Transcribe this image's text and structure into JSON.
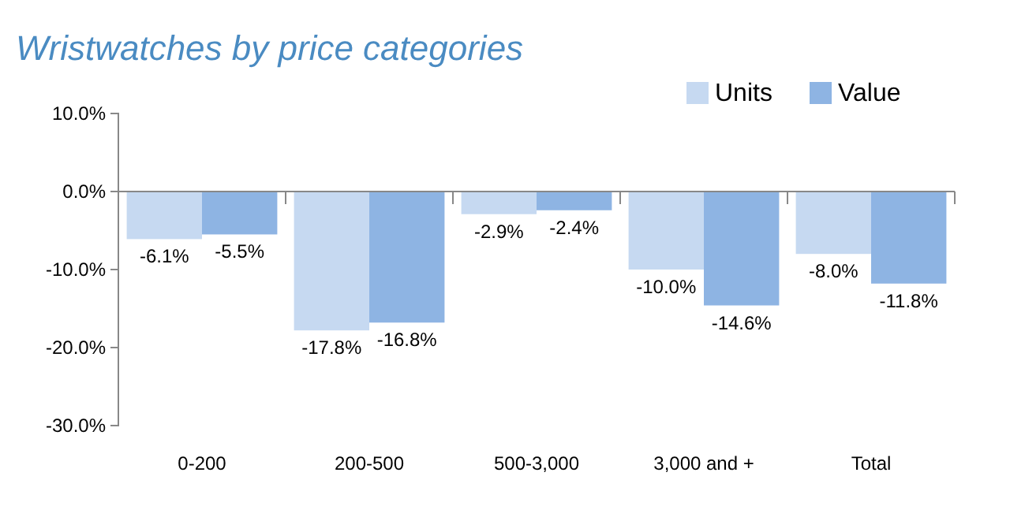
{
  "chart_data": {
    "type": "bar",
    "title": "Wristwatches by price categories",
    "categories": [
      "0-200",
      "200-500",
      "500-3,000",
      "3,000 and +",
      "Total"
    ],
    "series": [
      {
        "name": "Units",
        "color": "#c6d9f1",
        "values": [
          -6.1,
          -17.8,
          -2.9,
          -10.0,
          -8.0
        ],
        "value_labels": [
          "-6.1%",
          "-17.8%",
          "-2.9%",
          "-10.0%",
          "-8.0%"
        ]
      },
      {
        "name": "Value",
        "color": "#8eb4e3",
        "values": [
          -5.5,
          -16.8,
          -2.4,
          -14.6,
          -11.8
        ],
        "value_labels": [
          "-5.5%",
          "-16.8%",
          "-2.4%",
          "-14.6%",
          "-11.8%"
        ]
      }
    ],
    "ylim": [
      -30,
      10
    ],
    "yticks": [
      {
        "value": -30,
        "label": "-30.0%"
      },
      {
        "value": -20,
        "label": "-20.0%"
      },
      {
        "value": -10,
        "label": "-10.0%"
      },
      {
        "value": 0,
        "label": "0.0%"
      },
      {
        "value": 10,
        "label": "10.0%"
      }
    ],
    "legend": "top right"
  }
}
